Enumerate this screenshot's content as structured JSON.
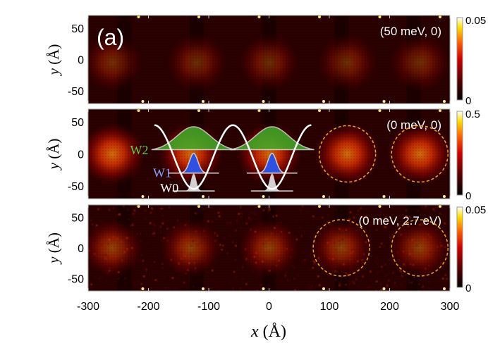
{
  "chart_data": {
    "type": "heatmap",
    "xlabel": "x (Å)",
    "ylabel": "y (Å)",
    "xlim": [
      -300,
      300
    ],
    "ylim": [
      -70,
      70
    ],
    "xticks": [
      "-300",
      "-200",
      "-100",
      "0",
      "100",
      "200",
      "300"
    ],
    "yticks": [
      "50",
      "0",
      "-50"
    ],
    "colormap": [
      "#000000",
      "#5a0000",
      "#c40000",
      "#ff5a00",
      "#ffd200",
      "#ffffff"
    ],
    "panels": [
      {
        "label": "(a)",
        "annotation": "(50 meV, 0)",
        "colorbar": {
          "min": "0",
          "max": "0.05"
        },
        "blobs_x": [
          -260,
          -120,
          0,
          130,
          250
        ],
        "intensity": 0.35
      },
      {
        "annotation": "(0 meV, 0)",
        "colorbar": {
          "min": "0",
          "max": "0.5"
        },
        "blobs_x": [
          -260,
          -130,
          0,
          130,
          250
        ],
        "intensity": 0.8,
        "dashed_circles_x": [
          130,
          250
        ],
        "wells": {
          "labels": [
            "W2",
            "W1",
            "W0"
          ],
          "colors": [
            "#3fae2a",
            "#3050e0",
            "#d8d0d0"
          ]
        }
      },
      {
        "annotation": "(0 meV, 2.7 eV)",
        "colorbar": {
          "min": "0",
          "max": "0.05"
        },
        "blobs_x": [
          -260,
          -130,
          0,
          120,
          250
        ],
        "intensity": 0.5,
        "dashed_circles_x": [
          120,
          250
        ]
      }
    ]
  }
}
